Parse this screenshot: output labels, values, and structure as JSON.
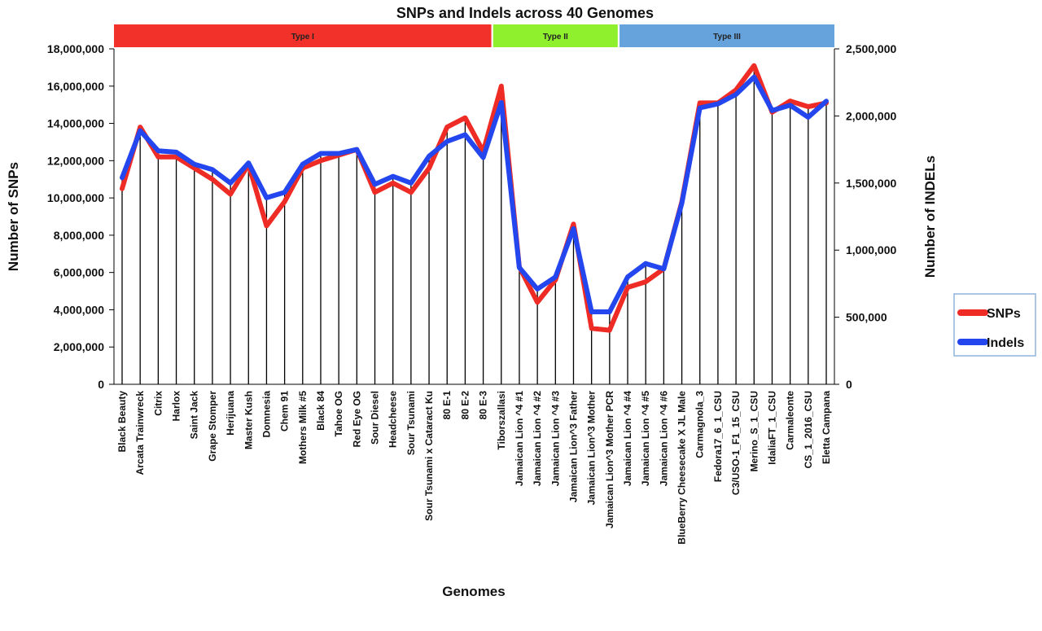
{
  "chart_data": {
    "type": "line",
    "title": "SNPs and Indels across 40 Genomes",
    "xlabel": "Genomes",
    "ylabel": "Number of SNPs",
    "y2label": "Number of INDELs",
    "ylim": [
      0,
      18000000
    ],
    "y2lim": [
      0,
      2500000
    ],
    "yticks": [
      "0",
      "2,000,000",
      "4,000,000",
      "6,000,000",
      "8,000,000",
      "10,000,000",
      "12,000,000",
      "14,000,000",
      "16,000,000",
      "18,000,000"
    ],
    "y2ticks": [
      "0",
      "500,000",
      "1,000,000",
      "1,500,000",
      "2,000,000",
      "2,500,000"
    ],
    "grid": false,
    "legend_position": "right",
    "categories": [
      "Black Beauty",
      "Arcata Trainwreck",
      "Citrix",
      "Harlox",
      "Saint Jack",
      "Grape Stomper",
      "Herijuana",
      "Master Kush",
      "Domnesia",
      "Chem 91",
      "Mothers Milk #5",
      "Black 84",
      "Tahoe OG",
      "Red Eye OG",
      "Sour Diesel",
      "Headcheese",
      "Sour Tsunami",
      "Sour Tsunami x Cataract Ku",
      "80 E-1",
      "80 E-2",
      "80 E-3",
      "Tiborszallasi",
      "Jamaican Lion ^4 #1",
      "Jamaican Lion ^4 #2",
      "Jamaican Lion ^4 #3",
      "Jamaican Lion^3 Father",
      "Jamaican Lion^3 Mother",
      "Jamaican Lion^3 Mother PCR",
      "Jamaican Lion ^4 #4",
      "Jamaican Lion ^4 #5",
      "Jamaican Lion ^4 #6",
      "BlueBerry Cheesecake X JL Male",
      "Carmagnola_3",
      "Fedora17_6_1_CSU",
      "C3/USO-1_F1_15_CSU",
      "Merino_S_1_CSU",
      "IdaliaFT_1_CSU",
      "Carmaleonte",
      "CS_1_2016_CSU",
      "Eletta Campana"
    ],
    "series": [
      {
        "name": "SNPs",
        "axis": "left",
        "color": "#ee2b24",
        "values": [
          10500000,
          13800000,
          12200000,
          12200000,
          11600000,
          11000000,
          10200000,
          11800000,
          8500000,
          9800000,
          11600000,
          12000000,
          12300000,
          12600000,
          10300000,
          10800000,
          10300000,
          11600000,
          13800000,
          14300000,
          12500000,
          16000000,
          6300000,
          4400000,
          5600000,
          8600000,
          3000000,
          2900000,
          5200000,
          5500000,
          6200000,
          9800000,
          15100000,
          15100000,
          15800000,
          17100000,
          14600000,
          15200000,
          14900000,
          15100000
        ]
      },
      {
        "name": "Indels",
        "axis": "right",
        "color": "#2446ee",
        "values": [
          1540000,
          1890000,
          1740000,
          1730000,
          1640000,
          1600000,
          1500000,
          1650000,
          1390000,
          1430000,
          1640000,
          1720000,
          1720000,
          1750000,
          1490000,
          1550000,
          1500000,
          1700000,
          1810000,
          1860000,
          1690000,
          2100000,
          870000,
          710000,
          800000,
          1160000,
          540000,
          540000,
          800000,
          900000,
          860000,
          1350000,
          2060000,
          2090000,
          2160000,
          2290000,
          2040000,
          2080000,
          1990000,
          2110000
        ]
      }
    ],
    "groups": [
      {
        "label": "Type I",
        "color": "#f1312a",
        "start": 0,
        "end": 20
      },
      {
        "label": "Type II",
        "color": "#8ff12e",
        "start": 21,
        "end": 27
      },
      {
        "label": "Type III",
        "color": "#66a3dd",
        "start": 28,
        "end": 39
      }
    ]
  }
}
